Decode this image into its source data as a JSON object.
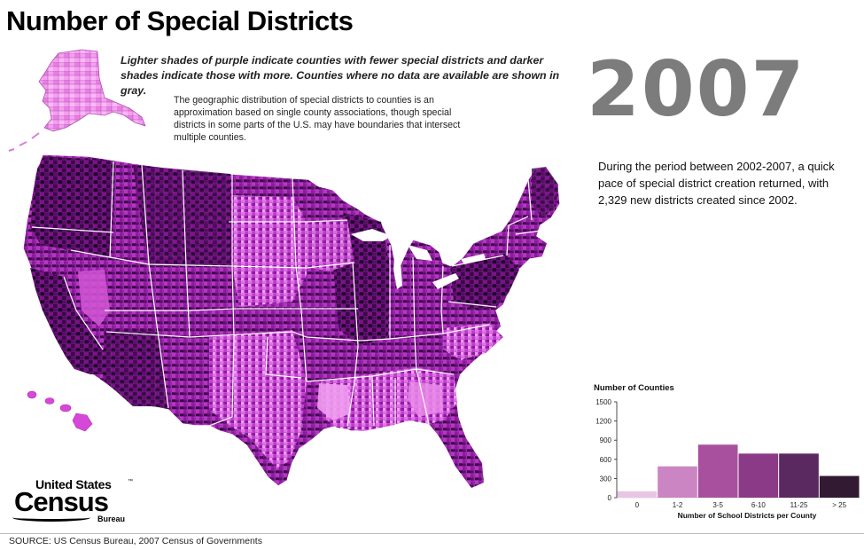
{
  "title": "Number of Special Districts",
  "year": "2007",
  "notes": {
    "legend": "Lighter shades of purple indicate counties with fewer special districts and darker shades indicate those with more.  Counties where no data are available are shown in gray.",
    "approximation": "The geographic distribution of special districts to counties is an approximation based on single county associations, though special districts in some parts of the U.S. may have boundaries that intersect multiple counties.",
    "period": "During the period between 2002-2007, a quick pace of special district creation returned, with 2,329 new districts created since 2002."
  },
  "map": {
    "regions": [
      "Alaska",
      "Hawaii",
      "contiguous United States"
    ],
    "shade_colors": [
      "#f7a6f3",
      "#e05ee0",
      "#b323b8",
      "#7a0c88",
      "#4a0658",
      "#26062c"
    ],
    "no_data_color": "#9a9a9a"
  },
  "logo": {
    "line1": "United States",
    "trademark": "™",
    "line2": "Census",
    "line3": "Bureau"
  },
  "source": "SOURCE: US Census Bureau, 2007 Census of Governments",
  "chart_data": {
    "type": "bar",
    "ylabel": "Number of Counties",
    "xlabel": "Number of School Districts per County",
    "categories": [
      "0",
      "1-2",
      "3-5",
      "6-10",
      "11-25",
      "> 25"
    ],
    "values": [
      100,
      490,
      830,
      690,
      690,
      340
    ],
    "colors": [
      "#e7c6e3",
      "#cb85c3",
      "#a8509d",
      "#8a3a86",
      "#5a2960",
      "#321a33"
    ],
    "yticks": [
      0,
      300,
      600,
      900,
      1200,
      1500
    ],
    "ytick_labels": [
      "0",
      "300",
      "600",
      "900",
      "1200",
      "1500"
    ],
    "ylim": [
      0,
      1500
    ],
    "grid": false
  }
}
